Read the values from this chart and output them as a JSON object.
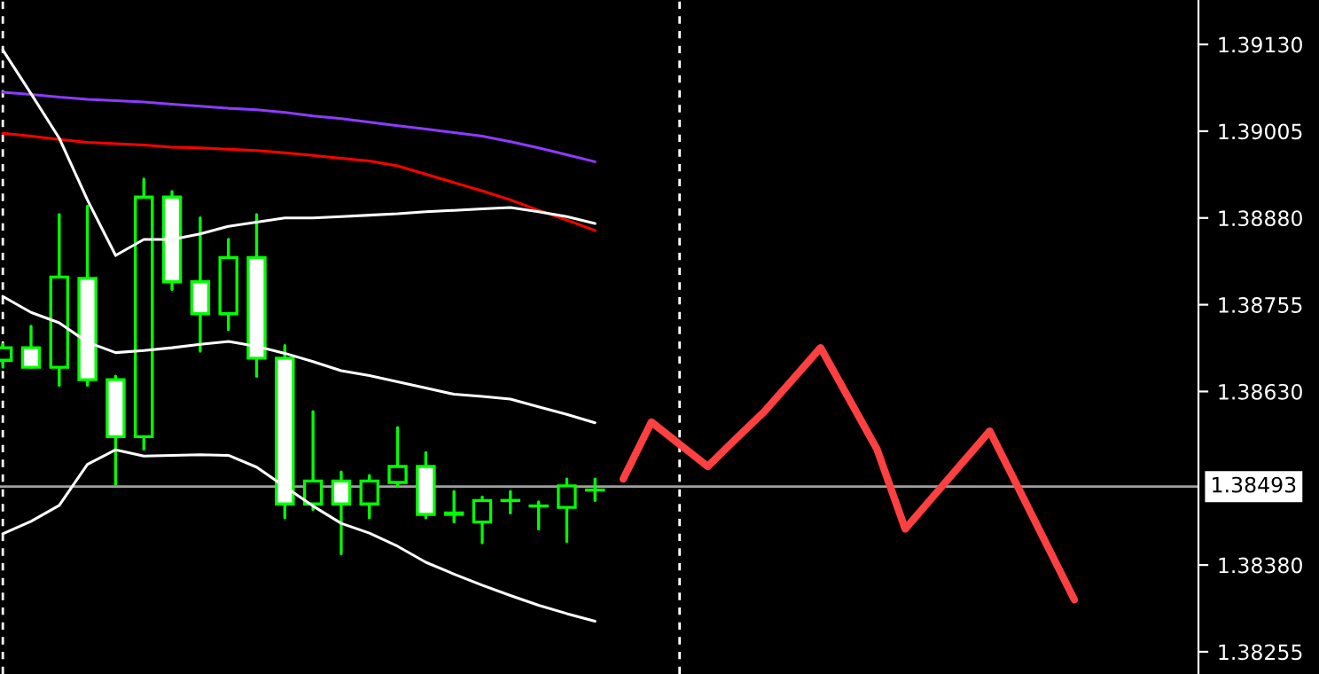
{
  "chart_data": {
    "type": "candlestick",
    "categories": [
      null,
      null,
      null,
      null,
      null,
      null,
      null,
      null,
      null,
      null,
      null,
      null,
      null,
      null,
      null,
      null,
      null,
      null,
      null,
      null,
      null,
      null,
      null,
      null,
      null,
      null,
      null,
      null,
      null,
      null,
      null,
      null,
      null,
      null,
      null,
      null,
      null,
      null,
      null,
      null,
      null,
      null,
      null
    ],
    "ohlc": [
      [
        1.38675,
        1.38698,
        1.38665,
        1.38693
      ],
      [
        1.38693,
        1.38724,
        1.38665,
        1.38665
      ],
      [
        1.38665,
        1.38885,
        1.38639,
        1.38795
      ],
      [
        1.38793,
        1.38897,
        1.38639,
        1.38647
      ],
      [
        1.38647,
        1.38652,
        1.38496,
        1.38565
      ],
      [
        1.38565,
        1.38936,
        1.38547,
        1.3891
      ],
      [
        1.3891,
        1.38918,
        1.38777,
        1.38788
      ],
      [
        1.38788,
        1.3888,
        1.38688,
        1.38742
      ],
      [
        1.38742,
        1.38849,
        1.38719,
        1.38823
      ],
      [
        1.38823,
        1.38885,
        1.38652,
        1.38678
      ],
      [
        1.38678,
        1.38696,
        1.38448,
        1.38468
      ],
      [
        1.38468,
        1.38601,
        1.3846,
        1.38501
      ],
      [
        1.38501,
        1.38514,
        1.38396,
        1.38468
      ],
      [
        1.38468,
        1.38509,
        1.38448,
        1.38501
      ],
      [
        1.38499,
        1.38578,
        1.38494,
        1.38522
      ],
      [
        1.38522,
        1.38542,
        1.38448,
        1.38453
      ],
      [
        1.38455,
        1.38486,
        1.38442,
        1.38453
      ],
      [
        1.38442,
        1.38478,
        1.38412,
        1.38473
      ],
      [
        1.38473,
        1.38486,
        1.38455,
        1.38473
      ],
      [
        1.38465,
        1.38471,
        1.38432,
        1.38465
      ],
      [
        1.38463,
        1.38504,
        1.38414,
        1.38494
      ],
      [
        1.38488,
        1.38504,
        1.38473,
        1.38488
      ],
      null,
      null,
      null,
      null,
      null,
      null,
      null,
      null,
      null,
      null,
      null,
      null,
      null,
      null,
      null,
      null,
      null,
      null,
      null,
      null,
      null
    ],
    "series": [
      {
        "type": "line",
        "color": "#8c3cff",
        "values": [
          1.39061,
          1.39058,
          1.39054,
          1.39051,
          1.39049,
          1.39047,
          1.39044,
          1.39041,
          1.39038,
          1.39036,
          1.39032,
          1.39027,
          1.39023,
          1.39018,
          1.39013,
          1.39008,
          1.39003,
          1.38998,
          1.3899,
          1.38981,
          1.38971,
          1.38961,
          null,
          null,
          null,
          null,
          null,
          null,
          null,
          null,
          null,
          null,
          null,
          null,
          null,
          null,
          null,
          null,
          null,
          null,
          null,
          null,
          null
        ]
      },
      {
        "type": "line",
        "color": "#ff0000",
        "values": [
          1.39002,
          1.38998,
          1.38993,
          1.38989,
          1.38987,
          1.38985,
          1.38982,
          1.38981,
          1.38979,
          1.38977,
          1.38974,
          1.3897,
          1.38966,
          1.38962,
          1.38955,
          1.38943,
          1.38931,
          1.38919,
          1.38906,
          1.38891,
          1.38877,
          1.38862,
          null,
          null,
          null,
          null,
          null,
          null,
          null,
          null,
          null,
          null,
          null,
          null,
          null,
          null,
          null,
          null,
          null,
          null,
          null,
          null,
          null
        ]
      },
      {
        "type": "line",
        "color": "#ffffff",
        "values": [
          1.39122,
          1.39059,
          1.38995,
          1.38906,
          1.38826,
          1.38849,
          1.38849,
          1.38857,
          1.38868,
          1.38874,
          1.3888,
          1.3888,
          1.38882,
          1.38884,
          1.38886,
          1.38889,
          1.38891,
          1.38893,
          1.38895,
          1.38889,
          1.38882,
          1.38872,
          null,
          null,
          null,
          null,
          null,
          null,
          null,
          null,
          null,
          null,
          null,
          null,
          null,
          null,
          null,
          null,
          null,
          null,
          null,
          null,
          null
        ]
      },
      {
        "type": "line",
        "color": "#ffffff",
        "values": [
          1.38767,
          1.38744,
          1.38729,
          1.38701,
          1.38686,
          1.38689,
          1.38693,
          1.38698,
          1.38702,
          1.38695,
          1.38685,
          1.38673,
          1.3866,
          1.38653,
          1.38644,
          1.38635,
          1.38626,
          1.38623,
          1.38619,
          1.38608,
          1.38597,
          1.38585,
          null,
          null,
          null,
          null,
          null,
          null,
          null,
          null,
          null,
          null,
          null,
          null,
          null,
          null,
          null,
          null,
          null,
          null,
          null,
          null,
          null
        ]
      },
      {
        "type": "line",
        "color": "#ffffff",
        "values": [
          1.38425,
          1.38443,
          1.38466,
          1.38525,
          1.38546,
          1.38537,
          1.38538,
          1.38539,
          1.38538,
          1.38521,
          1.38493,
          1.38465,
          1.3844,
          1.38426,
          1.38407,
          1.38384,
          1.38367,
          1.38351,
          1.38336,
          1.38322,
          1.3831,
          1.38299,
          null,
          null,
          null,
          null,
          null,
          null,
          null,
          null,
          null,
          null,
          null,
          null,
          null,
          null,
          null,
          null,
          null,
          null,
          null,
          null,
          null
        ]
      },
      {
        "type": "line",
        "color": "#ff4040",
        "values": [
          null,
          null,
          null,
          null,
          null,
          null,
          null,
          null,
          null,
          null,
          null,
          null,
          null,
          null,
          null,
          null,
          null,
          null,
          null,
          null,
          null,
          null,
          1.38504,
          1.38586,
          1.38554,
          1.38522,
          1.38562,
          1.38601,
          1.38647,
          1.38693,
          1.3862,
          1.38547,
          1.38432,
          1.38479,
          1.38526,
          1.38573,
          1.38492,
          1.38411,
          1.3833,
          null,
          null,
          null,
          null
        ]
      }
    ],
    "ylim": [
      1.38223,
      1.39194
    ],
    "yticks": [
      {
        "value": 1.3913,
        "label": "1.39130"
      },
      {
        "value": 1.39005,
        "label": "1.39005"
      },
      {
        "value": 1.3888,
        "label": "1.38880"
      },
      {
        "value": 1.38755,
        "label": "1.38755"
      },
      {
        "value": 1.3863,
        "label": "1.38630"
      },
      {
        "value": 1.3838,
        "label": "1.38380"
      },
      {
        "value": 1.38255,
        "label": "1.38255"
      }
    ],
    "tick_labels": "y",
    "ref_lines": [
      {
        "axis": "y",
        "value": 1.38493,
        "label": "1.38493",
        "color": "#a0a0a0",
        "line_style": "solid"
      }
    ],
    "grid": false,
    "legend": false
  }
}
